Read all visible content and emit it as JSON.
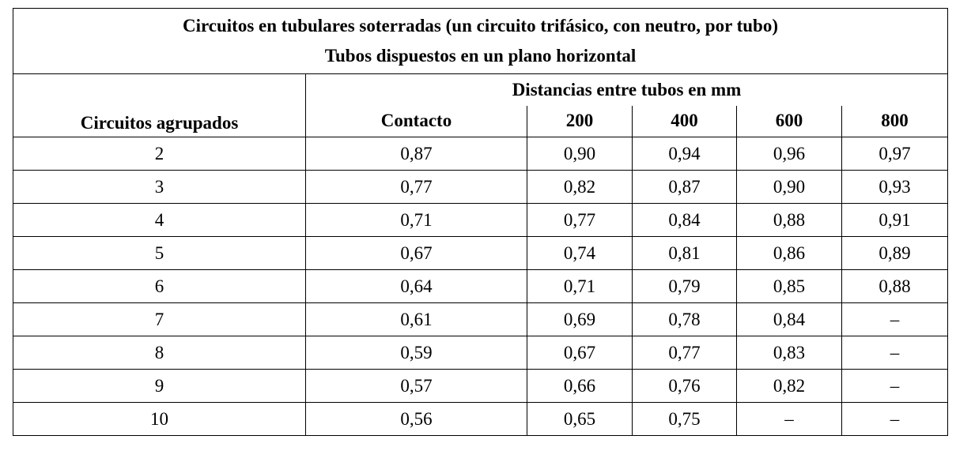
{
  "table": {
    "title_line1": "Circuitos en tubulares soterradas (un circuito trifásico, con neutro, por tubo)",
    "title_line2": "Tubos dispuestos en un plano horizontal",
    "row_header": "Circuitos agrupados",
    "group_header": "Distancias entre tubos en mm",
    "columns": [
      "Contacto",
      "200",
      "400",
      "600",
      "800"
    ],
    "rows": [
      {
        "circuits": "2",
        "values": [
          "0,87",
          "0,90",
          "0,94",
          "0,96",
          "0,97"
        ]
      },
      {
        "circuits": "3",
        "values": [
          "0,77",
          "0,82",
          "0,87",
          "0,90",
          "0,93"
        ]
      },
      {
        "circuits": "4",
        "values": [
          "0,71",
          "0,77",
          "0,84",
          "0,88",
          "0,91"
        ]
      },
      {
        "circuits": "5",
        "values": [
          "0,67",
          "0,74",
          "0,81",
          "0,86",
          "0,89"
        ]
      },
      {
        "circuits": "6",
        "values": [
          "0,64",
          "0,71",
          "0,79",
          "0,85",
          "0,88"
        ]
      },
      {
        "circuits": "7",
        "values": [
          "0,61",
          "0,69",
          "0,78",
          "0,84",
          "–"
        ]
      },
      {
        "circuits": "8",
        "values": [
          "0,59",
          "0,67",
          "0,77",
          "0,83",
          "–"
        ]
      },
      {
        "circuits": "9",
        "values": [
          "0,57",
          "0,66",
          "0,76",
          "0,82",
          "–"
        ]
      },
      {
        "circuits": "10",
        "values": [
          "0,56",
          "0,65",
          "0,75",
          "–",
          "–"
        ]
      }
    ]
  }
}
